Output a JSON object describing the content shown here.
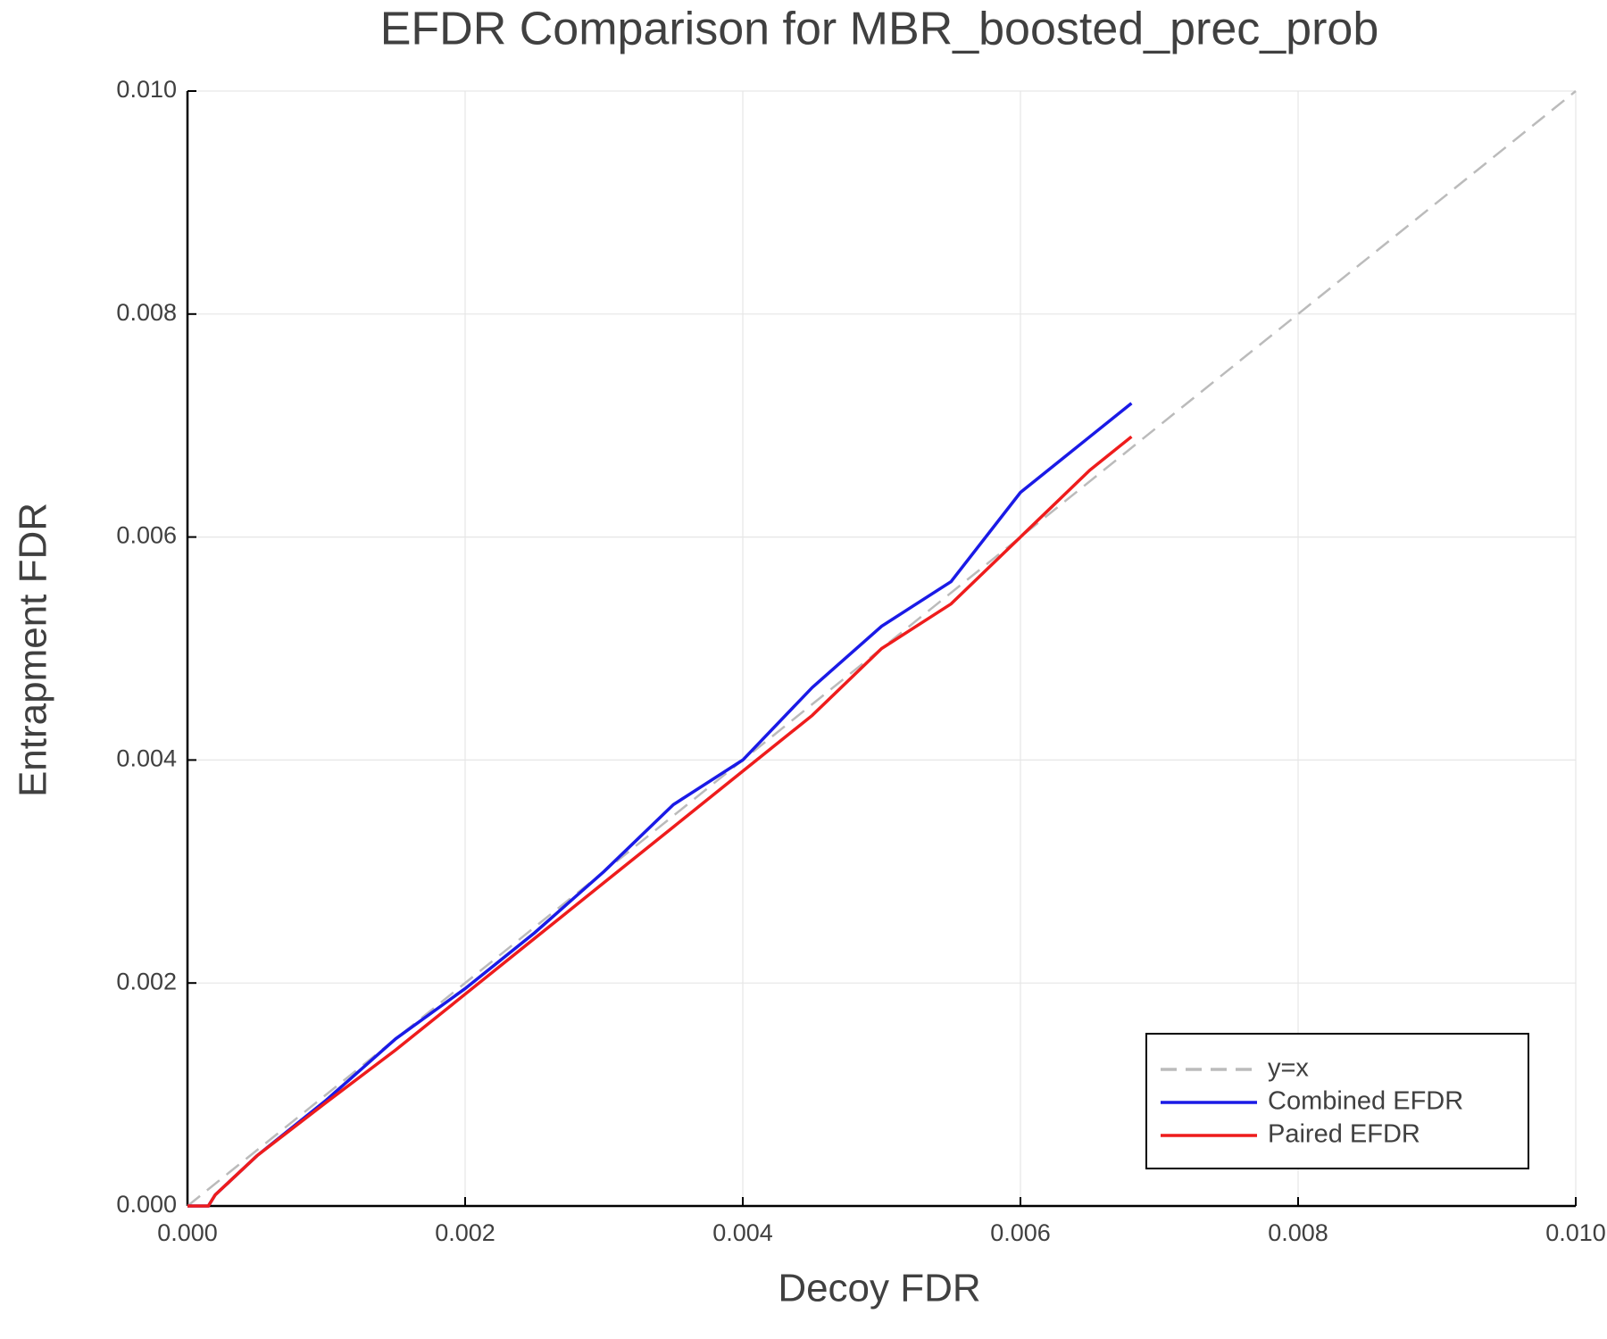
{
  "chart_data": {
    "type": "line",
    "title": "EFDR Comparison for MBR_boosted_prec_prob",
    "xlabel": "Decoy FDR",
    "ylabel": "Entrapment FDR",
    "xlim": [
      0,
      0.01
    ],
    "ylim": [
      0,
      0.01
    ],
    "xticks": [
      {
        "value": 0,
        "label": "0.000"
      },
      {
        "value": 0.002,
        "label": "0.002"
      },
      {
        "value": 0.004,
        "label": "0.004"
      },
      {
        "value": 0.006,
        "label": "0.006"
      },
      {
        "value": 0.008,
        "label": "0.008"
      },
      {
        "value": 0.01,
        "label": "0.010"
      }
    ],
    "yticks": [
      {
        "value": 0,
        "label": "0.000"
      },
      {
        "value": 0.002,
        "label": "0.002"
      },
      {
        "value": 0.004,
        "label": "0.004"
      },
      {
        "value": 0.006,
        "label": "0.006"
      },
      {
        "value": 0.008,
        "label": "0.008"
      },
      {
        "value": 0.01,
        "label": "0.010"
      }
    ],
    "grid": true,
    "legend": "bottom-right",
    "series": [
      {
        "name": "y=x",
        "color": "#bbbbbb",
        "linestyle": "dashed",
        "x": [
          0,
          0.01
        ],
        "values": [
          0,
          0.01
        ]
      },
      {
        "name": "Combined EFDR",
        "color": "#1a1ae6",
        "linestyle": "solid",
        "x": [
          0,
          0.00015,
          0.0002,
          0.0005,
          0.001,
          0.0015,
          0.002,
          0.0025,
          0.003,
          0.0035,
          0.004,
          0.0045,
          0.005,
          0.0055,
          0.006,
          0.0065,
          0.0068
        ],
        "values": [
          0,
          0,
          0.0001,
          0.00045,
          0.00095,
          0.0015,
          0.00195,
          0.00245,
          0.003,
          0.0036,
          0.004,
          0.00465,
          0.0052,
          0.0056,
          0.0064,
          0.0069,
          0.0072
        ]
      },
      {
        "name": "Paired EFDR",
        "color": "#ee1c1c",
        "linestyle": "solid",
        "x": [
          0,
          0.00015,
          0.0002,
          0.0005,
          0.001,
          0.0015,
          0.002,
          0.0025,
          0.003,
          0.0035,
          0.004,
          0.0045,
          0.005,
          0.0055,
          0.006,
          0.0065,
          0.0068
        ],
        "values": [
          0,
          0,
          0.0001,
          0.00045,
          0.00093,
          0.0014,
          0.0019,
          0.0024,
          0.0029,
          0.0034,
          0.0039,
          0.0044,
          0.005,
          0.0054,
          0.006,
          0.0066,
          0.0069
        ]
      }
    ]
  }
}
